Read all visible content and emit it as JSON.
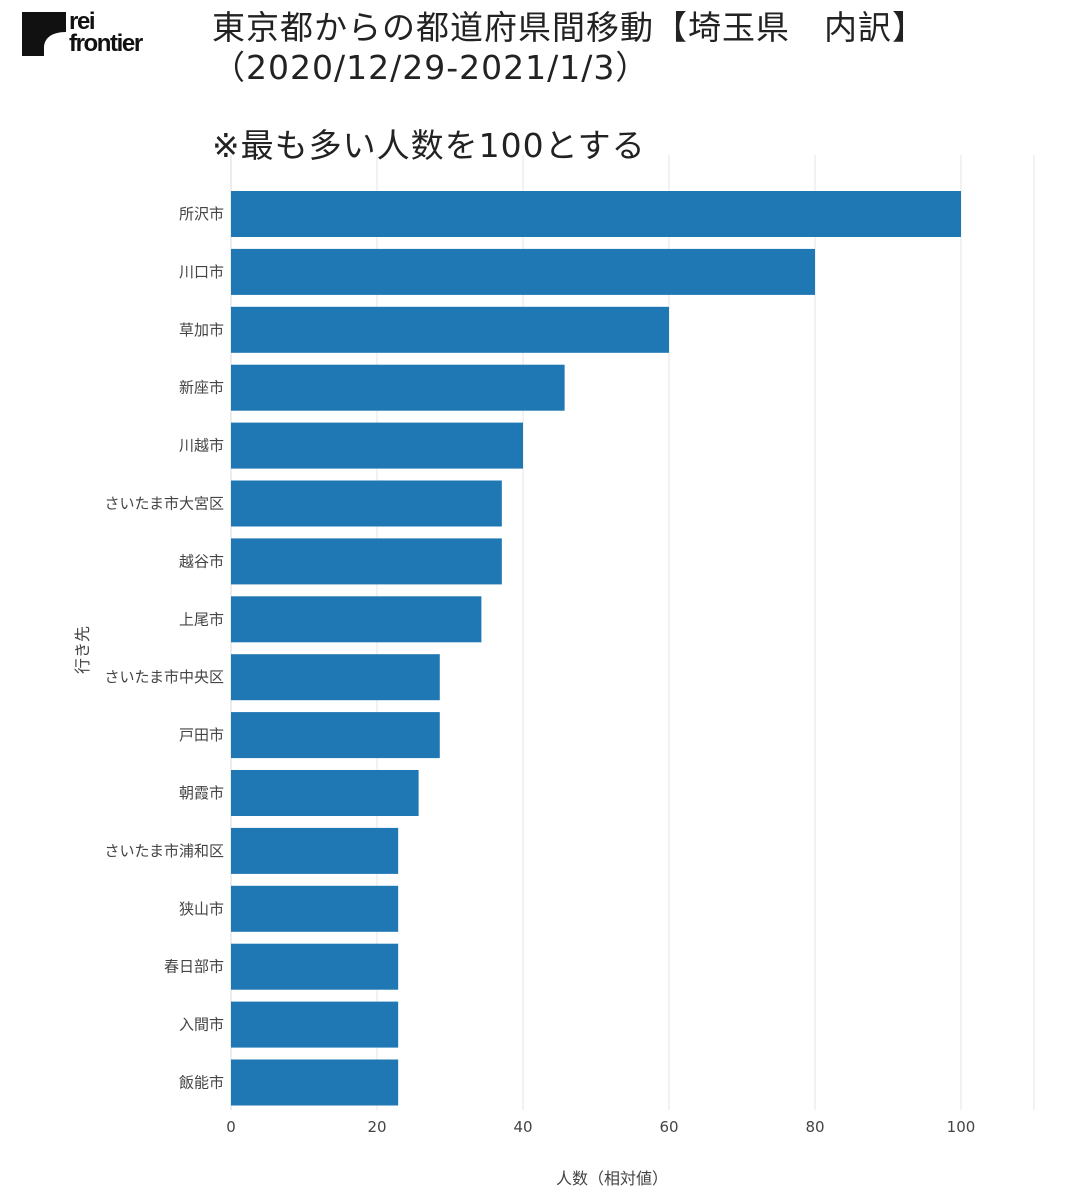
{
  "logo": {
    "line1": "rei",
    "line2": "frontier"
  },
  "header": {
    "title_line1": "東京都からの都道府県間移動【埼玉県　内訳】",
    "title_line2": "（2020/12/29-2021/1/3）",
    "note": "※最も多い人数を100とする"
  },
  "colors": {
    "bar": "#1f77b4",
    "grid": "#e6e6e6",
    "text": "#444444"
  },
  "chart_data": {
    "type": "bar",
    "orientation": "horizontal",
    "categories": [
      "所沢市",
      "川口市",
      "草加市",
      "新座市",
      "川越市",
      "さいたま市大宮区",
      "越谷市",
      "上尾市",
      "さいたま市中央区",
      "戸田市",
      "朝霞市",
      "さいたま市浦和区",
      "狭山市",
      "春日部市",
      "入間市",
      "飯能市"
    ],
    "values": [
      100,
      80,
      60,
      45.7,
      40,
      37.1,
      37.1,
      34.3,
      28.6,
      28.6,
      25.7,
      22.9,
      22.9,
      22.9,
      22.9,
      22.9
    ],
    "xlabel": "人数（相対値）",
    "ylabel": "行き先",
    "xlim": [
      0,
      110
    ],
    "xticks": [
      0,
      20,
      40,
      60,
      80,
      100
    ],
    "grid": true
  }
}
